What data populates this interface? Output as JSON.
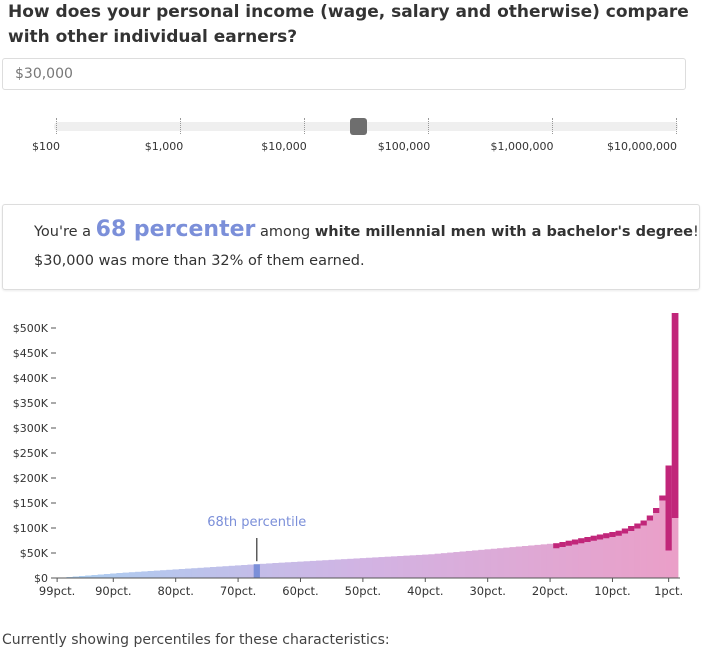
{
  "question": "How does your personal income (wage, salary and otherwise) compare with other individual earners?",
  "income_input": {
    "value": "$30,000"
  },
  "slider": {
    "ticks": [
      "$100",
      "$1,000",
      "$10,000",
      "$100,000",
      "$1,000,000",
      "$10,000,000"
    ],
    "position": 0.4865
  },
  "result": {
    "prefix": "You're a ",
    "rank": "68 percenter",
    "among": " among ",
    "group": "white millennial men with a bachelor's degree",
    "suffix": "!",
    "detail": "$30,000 was more than 32% of them earned."
  },
  "chart_data": {
    "type": "bar",
    "title": "",
    "xlabel": "",
    "ylabel": "",
    "ylim": [
      0,
      530000
    ],
    "y_ticks": [
      {
        "value": 500000,
        "label": "$500K"
      },
      {
        "value": 450000,
        "label": "$450K"
      },
      {
        "value": 400000,
        "label": "$400K"
      },
      {
        "value": 350000,
        "label": "$350K"
      },
      {
        "value": 300000,
        "label": "$300K"
      },
      {
        "value": 250000,
        "label": "$250K"
      },
      {
        "value": 200000,
        "label": "$200K"
      },
      {
        "value": 150000,
        "label": "$150K"
      },
      {
        "value": 100000,
        "label": "$100K"
      },
      {
        "value": 50000,
        "label": "$50K"
      },
      {
        "value": 0,
        "label": "$0"
      }
    ],
    "x_ticks": [
      {
        "percentile": 99,
        "label": "99pct."
      },
      {
        "percentile": 90,
        "label": "90pct."
      },
      {
        "percentile": 80,
        "label": "80pct."
      },
      {
        "percentile": 70,
        "label": "70pct."
      },
      {
        "percentile": 60,
        "label": "60pct."
      },
      {
        "percentile": 50,
        "label": "50pct."
      },
      {
        "percentile": 40,
        "label": "40pct."
      },
      {
        "percentile": 30,
        "label": "30pct."
      },
      {
        "percentile": 20,
        "label": "20pct."
      },
      {
        "percentile": 10,
        "label": "10pct."
      },
      {
        "percentile": 1,
        "label": "1pct."
      }
    ],
    "categories_note": "percentile buckets from 99pct. (lowest income, left) to 1pct. (highest income, right)",
    "values": [
      0,
      1000,
      2000,
      3000,
      4000,
      5000,
      6000,
      7000,
      8000,
      9000,
      10000,
      10800,
      11600,
      12400,
      13200,
      14000,
      14800,
      15600,
      16400,
      17200,
      18000,
      18800,
      19600,
      20400,
      21200,
      22000,
      22800,
      23600,
      24400,
      25200,
      26000,
      26800,
      27600,
      28400,
      29200,
      30000,
      30700,
      31400,
      32100,
      32800,
      33500,
      34200,
      34900,
      35600,
      36300,
      37000,
      37700,
      38400,
      39100,
      39800,
      40500,
      41200,
      41900,
      42600,
      43300,
      44000,
      44700,
      45400,
      46100,
      46800,
      47500,
      48600,
      49700,
      50800,
      51900,
      53000,
      54100,
      55200,
      56300,
      57400,
      58500,
      59600,
      60700,
      61800,
      62900,
      64000,
      65100,
      66200,
      67300,
      68400,
      69500,
      72000,
      74500,
      77000,
      79500,
      82000,
      84500,
      87000,
      89500,
      92000,
      94500,
      99000,
      104000,
      109000,
      115000,
      125000,
      140000,
      165000,
      225000,
      530000
    ],
    "highlight": {
      "index": 32,
      "label": "68th percentile"
    },
    "colors": {
      "low": "#a9cff2",
      "mid": "#d2b3e3",
      "high": "#ea9fc8",
      "top": "#c1267a",
      "highlight": "#7b8fd9"
    }
  },
  "footer": "Currently showing percentiles for these characteristics:"
}
